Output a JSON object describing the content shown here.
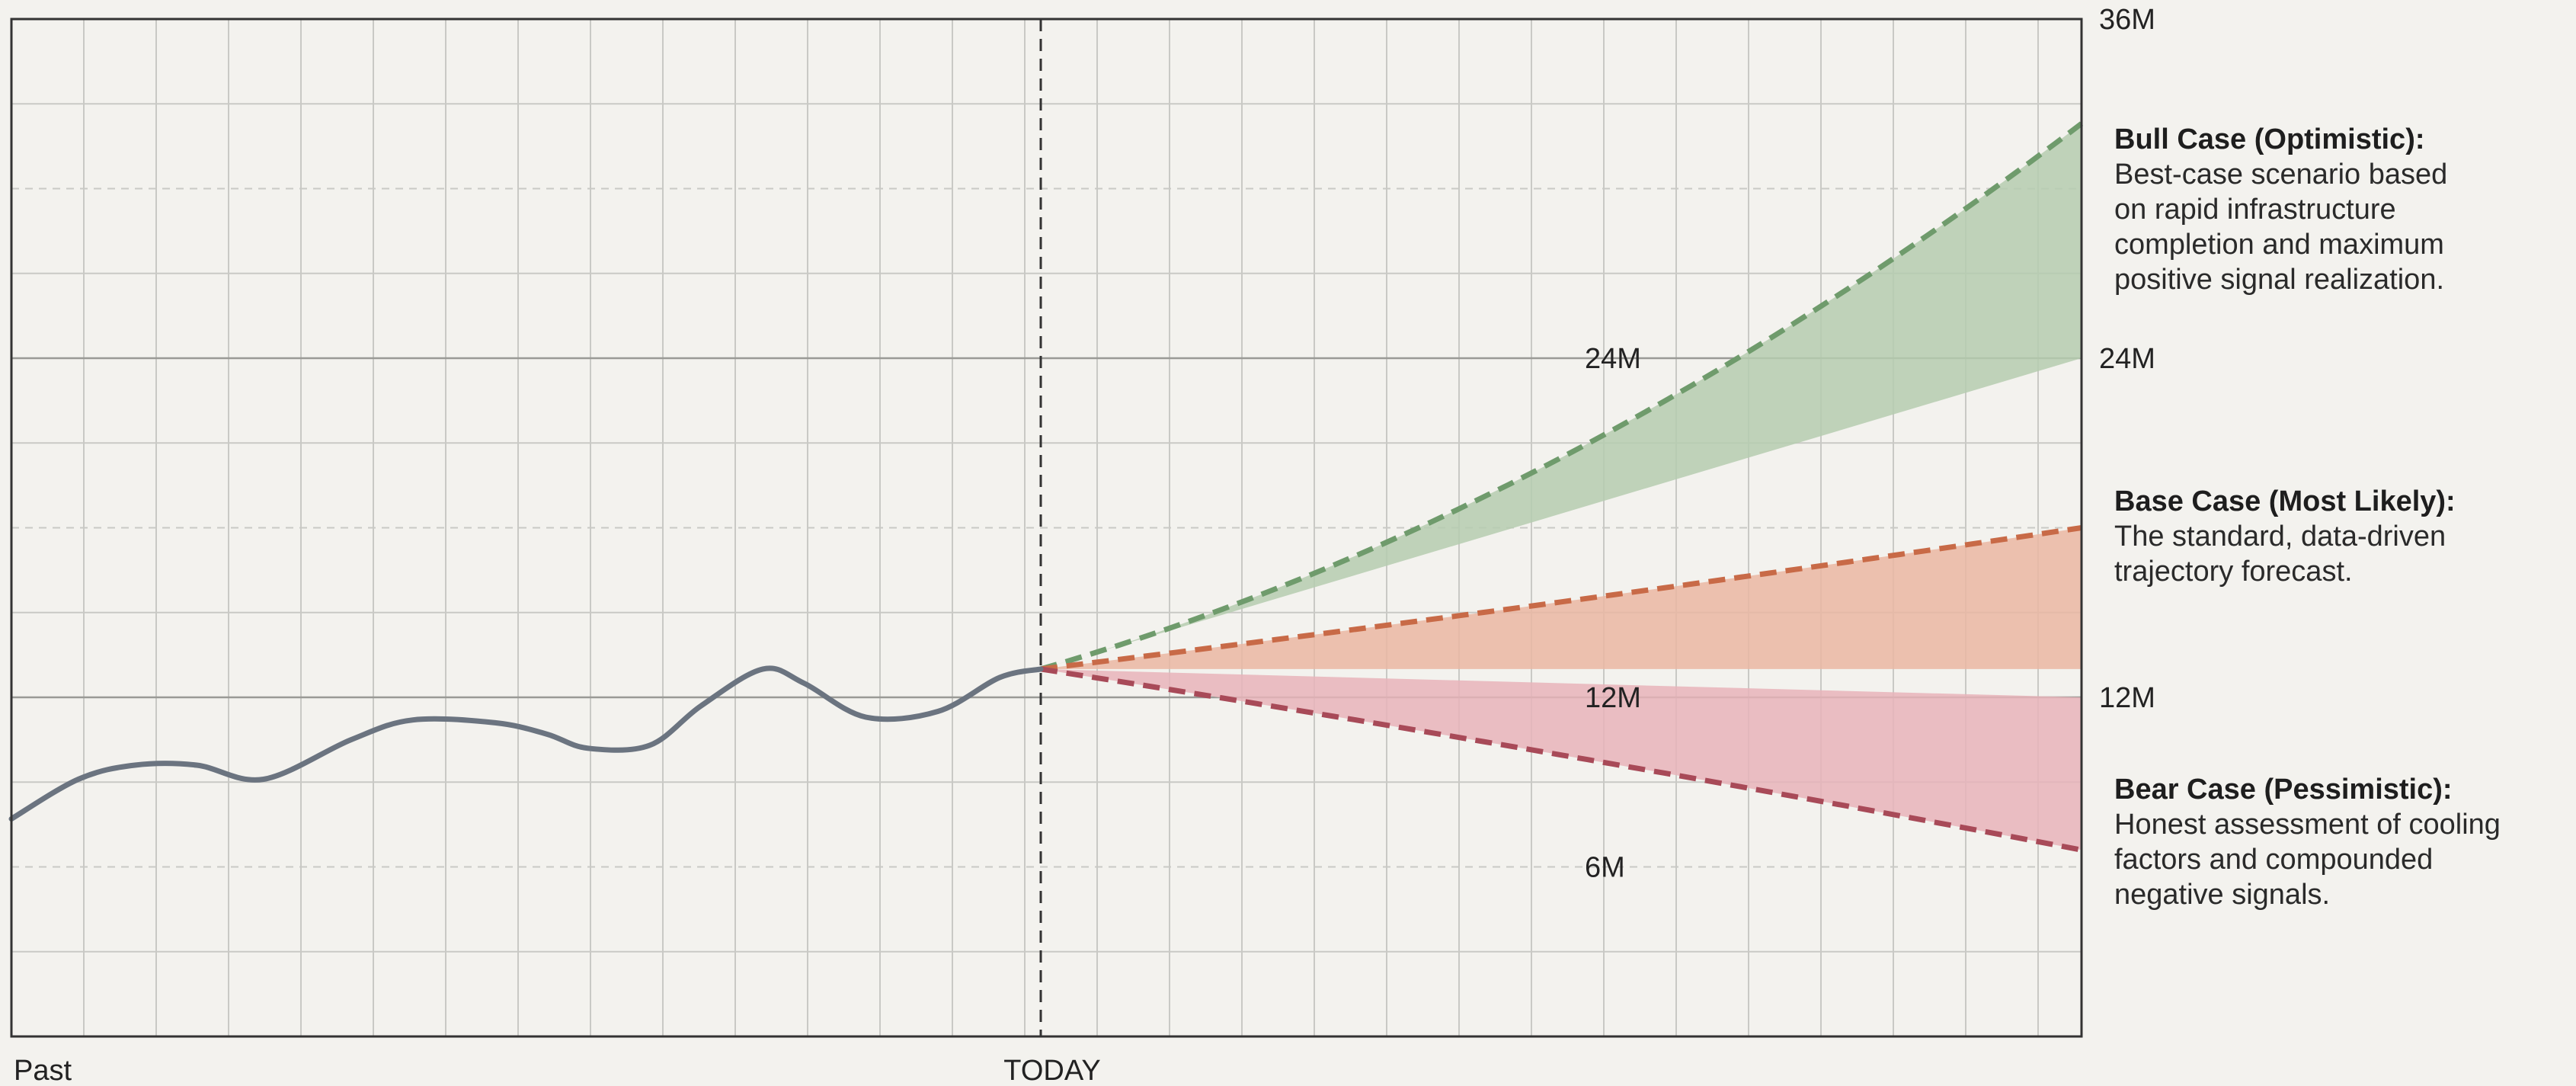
{
  "chart_data": {
    "type": "area",
    "title": "",
    "xlabel": "",
    "ylabel": "",
    "x_labels": {
      "start": "Past",
      "today": "TODAY"
    },
    "ylim": [
      0,
      36
    ],
    "y_unit": "M",
    "grid": true,
    "y_ticks_right": [
      {
        "value": 36,
        "label": "36M"
      },
      {
        "value": 24,
        "label": "24M"
      },
      {
        "value": 12,
        "label": "12M"
      }
    ],
    "y_ticks_inline": [
      {
        "value": 24,
        "label": "24M"
      },
      {
        "value": 12,
        "label": "12M"
      },
      {
        "value": 6,
        "label": "6M"
      }
    ],
    "history": {
      "x": [
        0,
        0.065,
        0.12,
        0.18,
        0.245,
        0.33,
        0.39,
        0.47,
        0.52,
        0.56,
        0.62,
        0.67,
        0.73,
        0.77,
        0.83,
        0.9,
        0.96,
        1.0
      ],
      "values": [
        7.7,
        9.1,
        9.6,
        9.6,
        9.1,
        10.5,
        11.2,
        11.1,
        10.7,
        10.2,
        10.3,
        11.7,
        13.0,
        12.5,
        11.3,
        11.5,
        12.7,
        13.0
      ]
    },
    "forecast_x": [
      0,
      1
    ],
    "series": [
      {
        "name": "Bull Case (Optimistic)",
        "start": 13.0,
        "end": 32.3,
        "curve": 0.45,
        "line_color": "#6f9b6c",
        "fill_color": "#b5cdaf",
        "fill_to": 24.0
      },
      {
        "name": "Base Case (Most Likely)",
        "start": 13.0,
        "end": 18.0,
        "curve": 0.1,
        "line_color": "#c86a47",
        "fill_color": "#eab7a2",
        "fill_to": 13.0
      },
      {
        "name": "Bear Case (Pessimistic)",
        "start": 13.0,
        "end": 6.6,
        "curve": 0.1,
        "line_color": "#a84a58",
        "fill_color": "#e7b4ba",
        "fill_to": 12.0
      }
    ],
    "annotations": [
      {
        "title": "Bull Case (Optimistic):",
        "lines": [
          "Best-case scenario based",
          "on rapid infrastructure",
          "completion and maximum",
          "positive signal realization."
        ]
      },
      {
        "title": "Base Case (Most Likely):",
        "lines": [
          "The standard, data-driven",
          "trajectory forecast."
        ]
      },
      {
        "title": "Bear Case (Pessimistic):",
        "lines": [
          "Honest assessment of cooling",
          "factors and compounded",
          "negative signals."
        ]
      }
    ],
    "colors": {
      "background": "#f3f2ee",
      "history_line": "#6b7480",
      "grid": "#c9c9c5",
      "axis": "#333333"
    }
  }
}
